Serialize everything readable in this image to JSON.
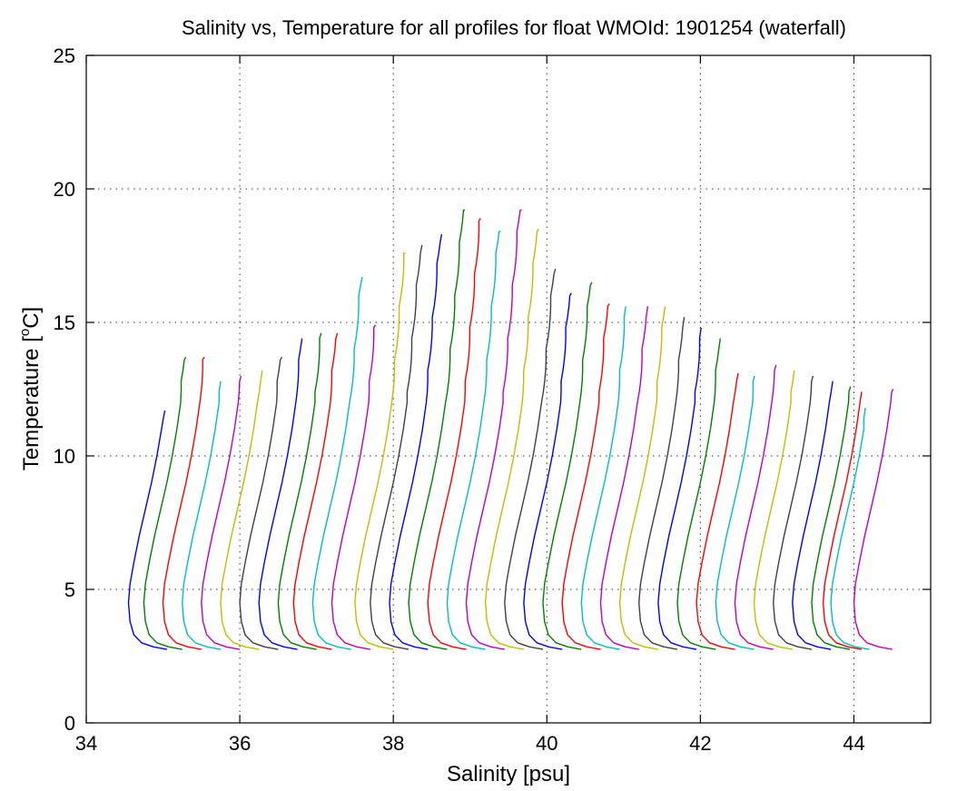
{
  "chart_data": {
    "type": "line",
    "title": "Salinity vs, Temperature for all profiles for float WMOId: 1901254 (waterfall)",
    "xlabel": "Salinity [psu]",
    "ylabel_prefix": "Temperature [",
    "ylabel_sup": "o",
    "ylabel_suffix": "C]",
    "xlim": [
      34,
      45
    ],
    "ylim": [
      0,
      25
    ],
    "x_ticks": [
      34,
      36,
      38,
      40,
      42,
      44
    ],
    "y_ticks": [
      0,
      5,
      10,
      15,
      20,
      25
    ],
    "x_tick_labels": [
      "34",
      "36",
      "38",
      "40",
      "42",
      "44"
    ],
    "y_tick_labels": [
      "0",
      "5",
      "10",
      "15",
      "20",
      "25"
    ],
    "grid": true,
    "waterfall": true,
    "color_cycle": [
      "#0000ff",
      "#008000",
      "#ff0000",
      "#00bfbf",
      "#bf00bf",
      "#bfbf00",
      "#404040"
    ],
    "series": [
      {
        "bottom_s": 35.05,
        "top_t": 11.7
      },
      {
        "bottom_s": 35.25,
        "top_t": 13.7
      },
      {
        "bottom_s": 35.5,
        "top_t": 13.7
      },
      {
        "bottom_s": 35.75,
        "top_t": 12.8
      },
      {
        "bottom_s": 36.0,
        "top_t": 13.0
      },
      {
        "bottom_s": 36.25,
        "top_t": 13.2
      },
      {
        "bottom_s": 36.5,
        "top_t": 13.7
      },
      {
        "bottom_s": 36.75,
        "top_t": 14.4
      },
      {
        "bottom_s": 37.0,
        "top_t": 14.6
      },
      {
        "bottom_s": 37.2,
        "top_t": 14.6
      },
      {
        "bottom_s": 37.45,
        "top_t": 16.7
      },
      {
        "bottom_s": 37.7,
        "top_t": 14.9
      },
      {
        "bottom_s": 38.0,
        "top_t": 17.6
      },
      {
        "bottom_s": 38.2,
        "top_t": 17.9
      },
      {
        "bottom_s": 38.45,
        "top_t": 18.3
      },
      {
        "bottom_s": 38.7,
        "top_t": 19.2
      },
      {
        "bottom_s": 38.95,
        "top_t": 18.9
      },
      {
        "bottom_s": 39.2,
        "top_t": 18.4
      },
      {
        "bottom_s": 39.45,
        "top_t": 19.2
      },
      {
        "bottom_s": 39.7,
        "top_t": 18.5
      },
      {
        "bottom_s": 39.95,
        "top_t": 17.0
      },
      {
        "bottom_s": 40.2,
        "top_t": 16.1
      },
      {
        "bottom_s": 40.45,
        "top_t": 16.5
      },
      {
        "bottom_s": 40.7,
        "top_t": 15.7
      },
      {
        "bottom_s": 40.95,
        "top_t": 15.6
      },
      {
        "bottom_s": 41.2,
        "top_t": 15.6
      },
      {
        "bottom_s": 41.45,
        "top_t": 15.6
      },
      {
        "bottom_s": 41.7,
        "top_t": 15.2
      },
      {
        "bottom_s": 41.95,
        "top_t": 14.8
      },
      {
        "bottom_s": 42.2,
        "top_t": 14.4
      },
      {
        "bottom_s": 42.45,
        "top_t": 13.1
      },
      {
        "bottom_s": 42.7,
        "top_t": 13.0
      },
      {
        "bottom_s": 42.95,
        "top_t": 13.4
      },
      {
        "bottom_s": 43.2,
        "top_t": 13.2
      },
      {
        "bottom_s": 43.45,
        "top_t": 13.0
      },
      {
        "bottom_s": 43.7,
        "top_t": 12.8
      },
      {
        "bottom_s": 43.95,
        "top_t": 12.6
      },
      {
        "bottom_s": 44.1,
        "top_t": 12.4
      },
      {
        "bottom_s": 44.2,
        "top_t": 11.8
      },
      {
        "bottom_s": 44.5,
        "top_t": 12.5
      }
    ]
  }
}
